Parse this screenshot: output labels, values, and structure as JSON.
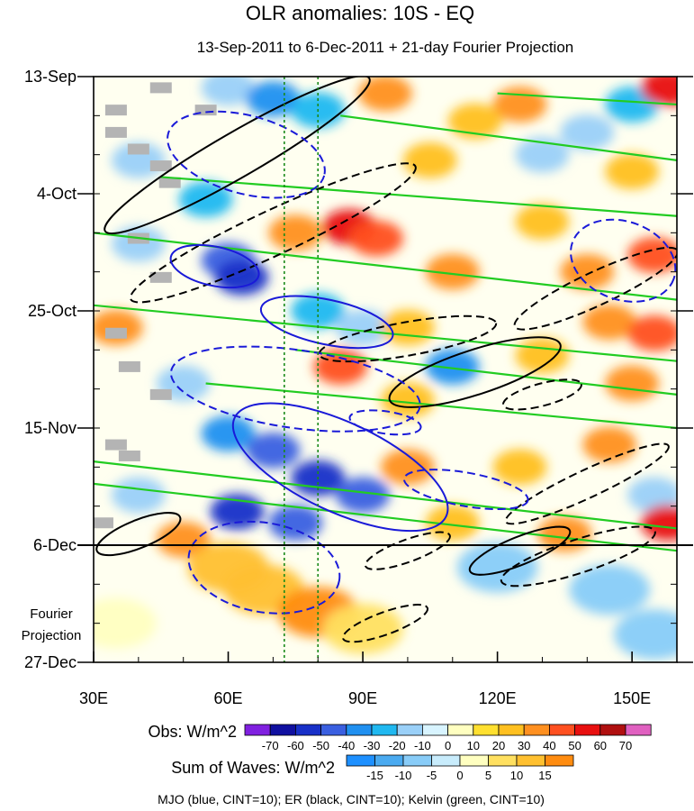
{
  "chart_data": {
    "type": "heatmap",
    "title": "OLR anomalies: 10S - EQ",
    "subtitle": "13-Sep-2011 to 6-Dec-2011 + 21-day Fourier Projection",
    "x_ticks": [
      {
        "value": 30,
        "label": "30E"
      },
      {
        "value": 60,
        "label": "60E"
      },
      {
        "value": 90,
        "label": "90E"
      },
      {
        "value": 120,
        "label": "120E"
      },
      {
        "value": 150,
        "label": "150E"
      }
    ],
    "xlim": [
      30,
      160
    ],
    "y_ticks": [
      {
        "value": 0,
        "label": "13-Sep"
      },
      {
        "value": 21,
        "label": "4-Oct"
      },
      {
        "value": 42,
        "label": "25-Oct"
      },
      {
        "value": 63,
        "label": "15-Nov"
      },
      {
        "value": 84,
        "label": "6-Dec"
      },
      {
        "value": 105,
        "label": "27-Dec"
      }
    ],
    "ylim_days": [
      0,
      105
    ],
    "observation_end_day": 84,
    "projection_label": "Fourier Projection",
    "reference_longitudes": [
      72.5,
      80
    ],
    "obs_colorbar": {
      "label": "Obs: W/m^2",
      "ticks": [
        "-70",
        "-60",
        "-50",
        "-40",
        "-30",
        "-20",
        "-10",
        "0",
        "10",
        "20",
        "30",
        "40",
        "50",
        "60",
        "70"
      ],
      "colors": [
        "#8020e0",
        "#1010a0",
        "#1830c8",
        "#3a5fe0",
        "#2090f0",
        "#20b8f0",
        "#9ad0f8",
        "#d8f4ff",
        "#ffffc0",
        "#ffe030",
        "#ffc020",
        "#ff9020",
        "#ff5020",
        "#e81010",
        "#b01010",
        "#e060c0"
      ]
    },
    "waves_colorbar": {
      "label": "Sum of Waves: W/m^2",
      "ticks": [
        "-15",
        "-10",
        "-5",
        "0",
        "5",
        "10",
        "15"
      ],
      "colors": [
        "#1e90ff",
        "#4aaaf0",
        "#88ccf8",
        "#c8ecfc",
        "#ffffc0",
        "#ffe060",
        "#ffc030",
        "#ff8c10"
      ]
    },
    "contour_legend": "MJO (blue, CINT=10); ER (black, CINT=10); Kelvin (green, CINT=10)",
    "contour_colors": {
      "mjo": "#1a1ad8",
      "er": "#000000",
      "kelvin": "#22cc22"
    },
    "blobs": [
      {
        "lon": 60,
        "day": 2,
        "val": -20
      },
      {
        "lon": 70,
        "day": 4,
        "val": -35
      },
      {
        "lon": 80,
        "day": 6,
        "val": -25
      },
      {
        "lon": 95,
        "day": 3,
        "val": 30
      },
      {
        "lon": 125,
        "day": 5,
        "val": 30
      },
      {
        "lon": 150,
        "day": 5,
        "val": -30
      },
      {
        "lon": 158,
        "day": 2,
        "val": 50
      },
      {
        "lon": 115,
        "day": 8,
        "val": 20
      },
      {
        "lon": 140,
        "day": 10,
        "val": -20
      },
      {
        "lon": 40,
        "day": 15,
        "val": -20
      },
      {
        "lon": 105,
        "day": 15,
        "val": 25
      },
      {
        "lon": 130,
        "day": 14,
        "val": -15
      },
      {
        "lon": 150,
        "day": 17,
        "val": 25
      },
      {
        "lon": 55,
        "day": 22,
        "val": -25
      },
      {
        "lon": 87,
        "day": 27,
        "val": 55
      },
      {
        "lon": 93,
        "day": 29,
        "val": 45
      },
      {
        "lon": 75,
        "day": 28,
        "val": 30
      },
      {
        "lon": 130,
        "day": 26,
        "val": 25
      },
      {
        "lon": 155,
        "day": 32,
        "val": 45
      },
      {
        "lon": 40,
        "day": 30,
        "val": -20
      },
      {
        "lon": 60,
        "day": 33,
        "val": -45
      },
      {
        "lon": 63,
        "day": 36,
        "val": -55
      },
      {
        "lon": 110,
        "day": 35,
        "val": 30
      },
      {
        "lon": 140,
        "day": 35,
        "val": 30
      },
      {
        "lon": 35,
        "day": 45,
        "val": 30
      },
      {
        "lon": 80,
        "day": 42,
        "val": -30
      },
      {
        "lon": 90,
        "day": 45,
        "val": -20
      },
      {
        "lon": 100,
        "day": 45,
        "val": 25
      },
      {
        "lon": 145,
        "day": 44,
        "val": 30
      },
      {
        "lon": 155,
        "day": 46,
        "val": 40
      },
      {
        "lon": 85,
        "day": 52,
        "val": 40
      },
      {
        "lon": 110,
        "day": 52,
        "val": -40
      },
      {
        "lon": 130,
        "day": 50,
        "val": 20
      },
      {
        "lon": 50,
        "day": 55,
        "val": -15
      },
      {
        "lon": 100,
        "day": 58,
        "val": 25
      },
      {
        "lon": 150,
        "day": 55,
        "val": 30
      },
      {
        "lon": 60,
        "day": 64,
        "val": -40
      },
      {
        "lon": 70,
        "day": 67,
        "val": -50
      },
      {
        "lon": 80,
        "day": 72,
        "val": -55
      },
      {
        "lon": 90,
        "day": 75,
        "val": -50
      },
      {
        "lon": 100,
        "day": 70,
        "val": 35
      },
      {
        "lon": 125,
        "day": 70,
        "val": 25
      },
      {
        "lon": 145,
        "day": 66,
        "val": 30
      },
      {
        "lon": 155,
        "day": 75,
        "val": -20
      },
      {
        "lon": 40,
        "day": 75,
        "val": -20
      },
      {
        "lon": 110,
        "day": 80,
        "val": 25
      },
      {
        "lon": 135,
        "day": 82,
        "val": 35
      },
      {
        "lon": 158,
        "day": 80,
        "val": 50
      },
      {
        "lon": 62,
        "day": 78,
        "val": -55
      },
      {
        "lon": 75,
        "day": 80,
        "val": -45
      },
      {
        "lon": 50,
        "day": 83,
        "val": 30
      }
    ],
    "projection_blobs": [
      {
        "lon": 68,
        "day": 92,
        "val": 12
      },
      {
        "lon": 80,
        "day": 96,
        "val": 15
      },
      {
        "lon": 60,
        "day": 88,
        "val": 10
      },
      {
        "lon": 90,
        "day": 99,
        "val": 8
      },
      {
        "lon": 120,
        "day": 88,
        "val": -8
      },
      {
        "lon": 145,
        "day": 92,
        "val": -10
      },
      {
        "lon": 155,
        "day": 100,
        "val": -8
      },
      {
        "lon": 35,
        "day": 98,
        "val": 4
      }
    ],
    "missing_data": [
      {
        "lon": 45,
        "day": 2
      },
      {
        "lon": 35,
        "day": 6
      },
      {
        "lon": 55,
        "day": 6
      },
      {
        "lon": 35,
        "day": 10
      },
      {
        "lon": 40,
        "day": 13
      },
      {
        "lon": 45,
        "day": 16
      },
      {
        "lon": 47,
        "day": 19
      },
      {
        "lon": 40,
        "day": 29
      },
      {
        "lon": 45,
        "day": 36
      },
      {
        "lon": 35,
        "day": 46
      },
      {
        "lon": 38,
        "day": 52
      },
      {
        "lon": 45,
        "day": 57
      },
      {
        "lon": 35,
        "day": 66
      },
      {
        "lon": 38,
        "day": 68
      },
      {
        "lon": 32,
        "day": 80
      }
    ],
    "kelvin_lines": [
      {
        "lon1": 30,
        "day1": 28,
        "lon2": 160,
        "day2": 40
      },
      {
        "lon1": 30,
        "day1": 41,
        "lon2": 160,
        "day2": 51
      },
      {
        "lon1": 30,
        "day1": 69,
        "lon2": 160,
        "day2": 81
      },
      {
        "lon1": 30,
        "day1": 73,
        "lon2": 160,
        "day2": 85
      },
      {
        "lon1": 45,
        "day1": 18,
        "lon2": 160,
        "day2": 25
      },
      {
        "lon1": 85,
        "day1": 7,
        "lon2": 160,
        "day2": 15
      },
      {
        "lon1": 75,
        "day1": 49,
        "lon2": 160,
        "day2": 57
      },
      {
        "lon1": 55,
        "day1": 55,
        "lon2": 160,
        "day2": 63
      },
      {
        "lon1": 120,
        "day1": 3,
        "lon2": 160,
        "day2": 5
      }
    ],
    "mjo_contours": [
      {
        "lon": 64,
        "day": 14,
        "rx": 18,
        "ry": 7,
        "rot": 15,
        "dash": true
      },
      {
        "lon": 57,
        "day": 34,
        "rx": 10,
        "ry": 3.5,
        "rot": 12,
        "dash": false
      },
      {
        "lon": 82,
        "day": 44,
        "rx": 15,
        "ry": 4,
        "rot": 12,
        "dash": false
      },
      {
        "lon": 75,
        "day": 56,
        "rx": 28,
        "ry": 7,
        "rot": 8,
        "dash": true
      },
      {
        "lon": 85,
        "day": 70,
        "rx": 26,
        "ry": 8,
        "rot": 25,
        "dash": false
      },
      {
        "lon": 68,
        "day": 88,
        "rx": 17,
        "ry": 8,
        "rot": 10,
        "dash": true
      },
      {
        "lon": 148,
        "day": 33,
        "rx": 12,
        "ry": 7,
        "rot": 20,
        "dash": true
      },
      {
        "lon": 113,
        "day": 74,
        "rx": 14,
        "ry": 3,
        "rot": 10,
        "dash": true
      },
      {
        "lon": 95,
        "day": 62,
        "rx": 8,
        "ry": 2,
        "rot": 8,
        "dash": true
      }
    ],
    "er_contours": [
      {
        "lon": 62,
        "day": 14,
        "rx": 34,
        "ry": 4,
        "rot": -30,
        "dash": false
      },
      {
        "lon": 70,
        "day": 28,
        "rx": 35,
        "ry": 4,
        "rot": -25,
        "dash": true
      },
      {
        "lon": 100,
        "day": 47,
        "rx": 20,
        "ry": 3,
        "rot": -10,
        "dash": true
      },
      {
        "lon": 115,
        "day": 53,
        "rx": 20,
        "ry": 4,
        "rot": -18,
        "dash": false
      },
      {
        "lon": 142,
        "day": 38,
        "rx": 20,
        "ry": 3,
        "rot": -25,
        "dash": true
      },
      {
        "lon": 130,
        "day": 57,
        "rx": 9,
        "ry": 2,
        "rot": -15,
        "dash": true
      },
      {
        "lon": 140,
        "day": 73,
        "rx": 20,
        "ry": 2.5,
        "rot": -25,
        "dash": true
      },
      {
        "lon": 100,
        "day": 85,
        "rx": 10,
        "ry": 2,
        "rot": -20,
        "dash": true
      },
      {
        "lon": 138,
        "day": 86,
        "rx": 18,
        "ry": 3,
        "rot": -18,
        "dash": true
      },
      {
        "lon": 95,
        "day": 98,
        "rx": 10,
        "ry": 2,
        "rot": -20,
        "dash": true
      },
      {
        "lon": 40,
        "day": 82,
        "rx": 10,
        "ry": 2.5,
        "rot": -22,
        "dash": false
      },
      {
        "lon": 125,
        "day": 85,
        "rx": 12,
        "ry": 2.5,
        "rot": -22,
        "dash": false
      }
    ]
  }
}
